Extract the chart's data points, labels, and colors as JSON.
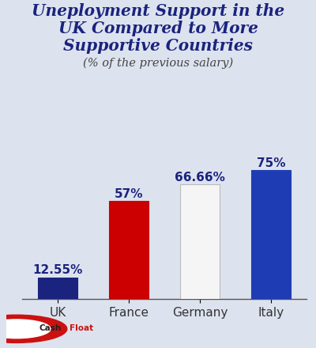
{
  "title_line1": "Uneployment Support in the",
  "title_line2": "UK Compared to More",
  "title_line3": "Supportive Countries",
  "subtitle": "(% of the previous salary)",
  "categories": [
    "UK",
    "France",
    "Germany",
    "Italy"
  ],
  "values": [
    12.55,
    57.0,
    66.66,
    75.0
  ],
  "labels": [
    "12.55%",
    "57%",
    "66.66%",
    "75%"
  ],
  "bar_colors": [
    "#1a237e",
    "#cc0000",
    "#f5f5f5",
    "#1e3db5"
  ],
  "bar_edge_colors": [
    "#1a237e",
    "#cc0000",
    "#bbbbbb",
    "#1e3db5"
  ],
  "background_color": "#dde3ee",
  "title_color": "#1a237e",
  "label_color": "#1a237e",
  "subtitle_color": "#444444",
  "xtick_color": "#333333",
  "ylim": [
    0,
    85
  ],
  "title_fontsize": 14.5,
  "subtitle_fontsize": 10.5,
  "label_fontsize": 11,
  "xtick_fontsize": 11,
  "logo_red": "#cc1111",
  "logo_cashfloat_red": "#cc1111",
  "logo_cashfloat_dark": "#222222"
}
